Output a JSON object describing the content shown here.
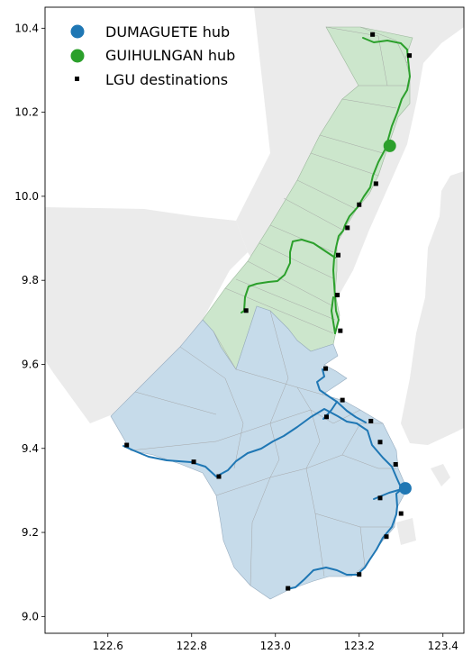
{
  "chart_data": {
    "type": "map",
    "xlim": [
      122.45,
      123.45
    ],
    "ylim": [
      8.96,
      10.45
    ],
    "x_ticks": [
      "122.6",
      "122.8",
      "123.0",
      "123.2",
      "123.4"
    ],
    "y_ticks": [
      "9.0",
      "9.2",
      "9.4",
      "9.6",
      "9.8",
      "10.0",
      "10.2",
      "10.4"
    ],
    "legend": {
      "placement": "top-left",
      "entries": [
        {
          "label": "DUMAGUETE hub",
          "color": "#1f77b4",
          "marker": "circle"
        },
        {
          "label": "GUIHULNGAN hub",
          "color": "#2ca02c",
          "marker": "circle"
        },
        {
          "label": "LGU destinations",
          "color": "#000000",
          "marker": "square"
        }
      ]
    },
    "colors": {
      "dumaguete_region": "#c6dbea",
      "guihulngan_region": "#cce6cc",
      "background_land": "#ebebeb",
      "dumaguete_route": "#1f77b4",
      "guihulngan_route": "#2ca02c"
    },
    "hubs": [
      {
        "name": "DUMAGUETE hub",
        "x": 123.31,
        "y": 9.305
      },
      {
        "name": "GUIHULNGAN hub",
        "x": 123.273,
        "y": 10.12
      }
    ],
    "destinations": [
      {
        "x": 123.232,
        "y": 10.385
      },
      {
        "x": 123.32,
        "y": 10.335
      },
      {
        "x": 123.24,
        "y": 10.03
      },
      {
        "x": 123.2,
        "y": 9.98
      },
      {
        "x": 123.172,
        "y": 9.925
      },
      {
        "x": 123.15,
        "y": 9.86
      },
      {
        "x": 123.148,
        "y": 9.765
      },
      {
        "x": 123.155,
        "y": 9.68
      },
      {
        "x": 122.93,
        "y": 9.728
      },
      {
        "x": 123.12,
        "y": 9.59
      },
      {
        "x": 123.16,
        "y": 9.515
      },
      {
        "x": 123.122,
        "y": 9.475
      },
      {
        "x": 123.228,
        "y": 9.465
      },
      {
        "x": 123.25,
        "y": 9.415
      },
      {
        "x": 123.287,
        "y": 9.362
      },
      {
        "x": 123.25,
        "y": 9.282
      },
      {
        "x": 123.3,
        "y": 9.245
      },
      {
        "x": 123.265,
        "y": 9.19
      },
      {
        "x": 123.2,
        "y": 9.1
      },
      {
        "x": 123.03,
        "y": 9.067
      },
      {
        "x": 122.645,
        "y": 9.408
      },
      {
        "x": 122.805,
        "y": 9.368
      },
      {
        "x": 122.865,
        "y": 9.333
      }
    ]
  }
}
